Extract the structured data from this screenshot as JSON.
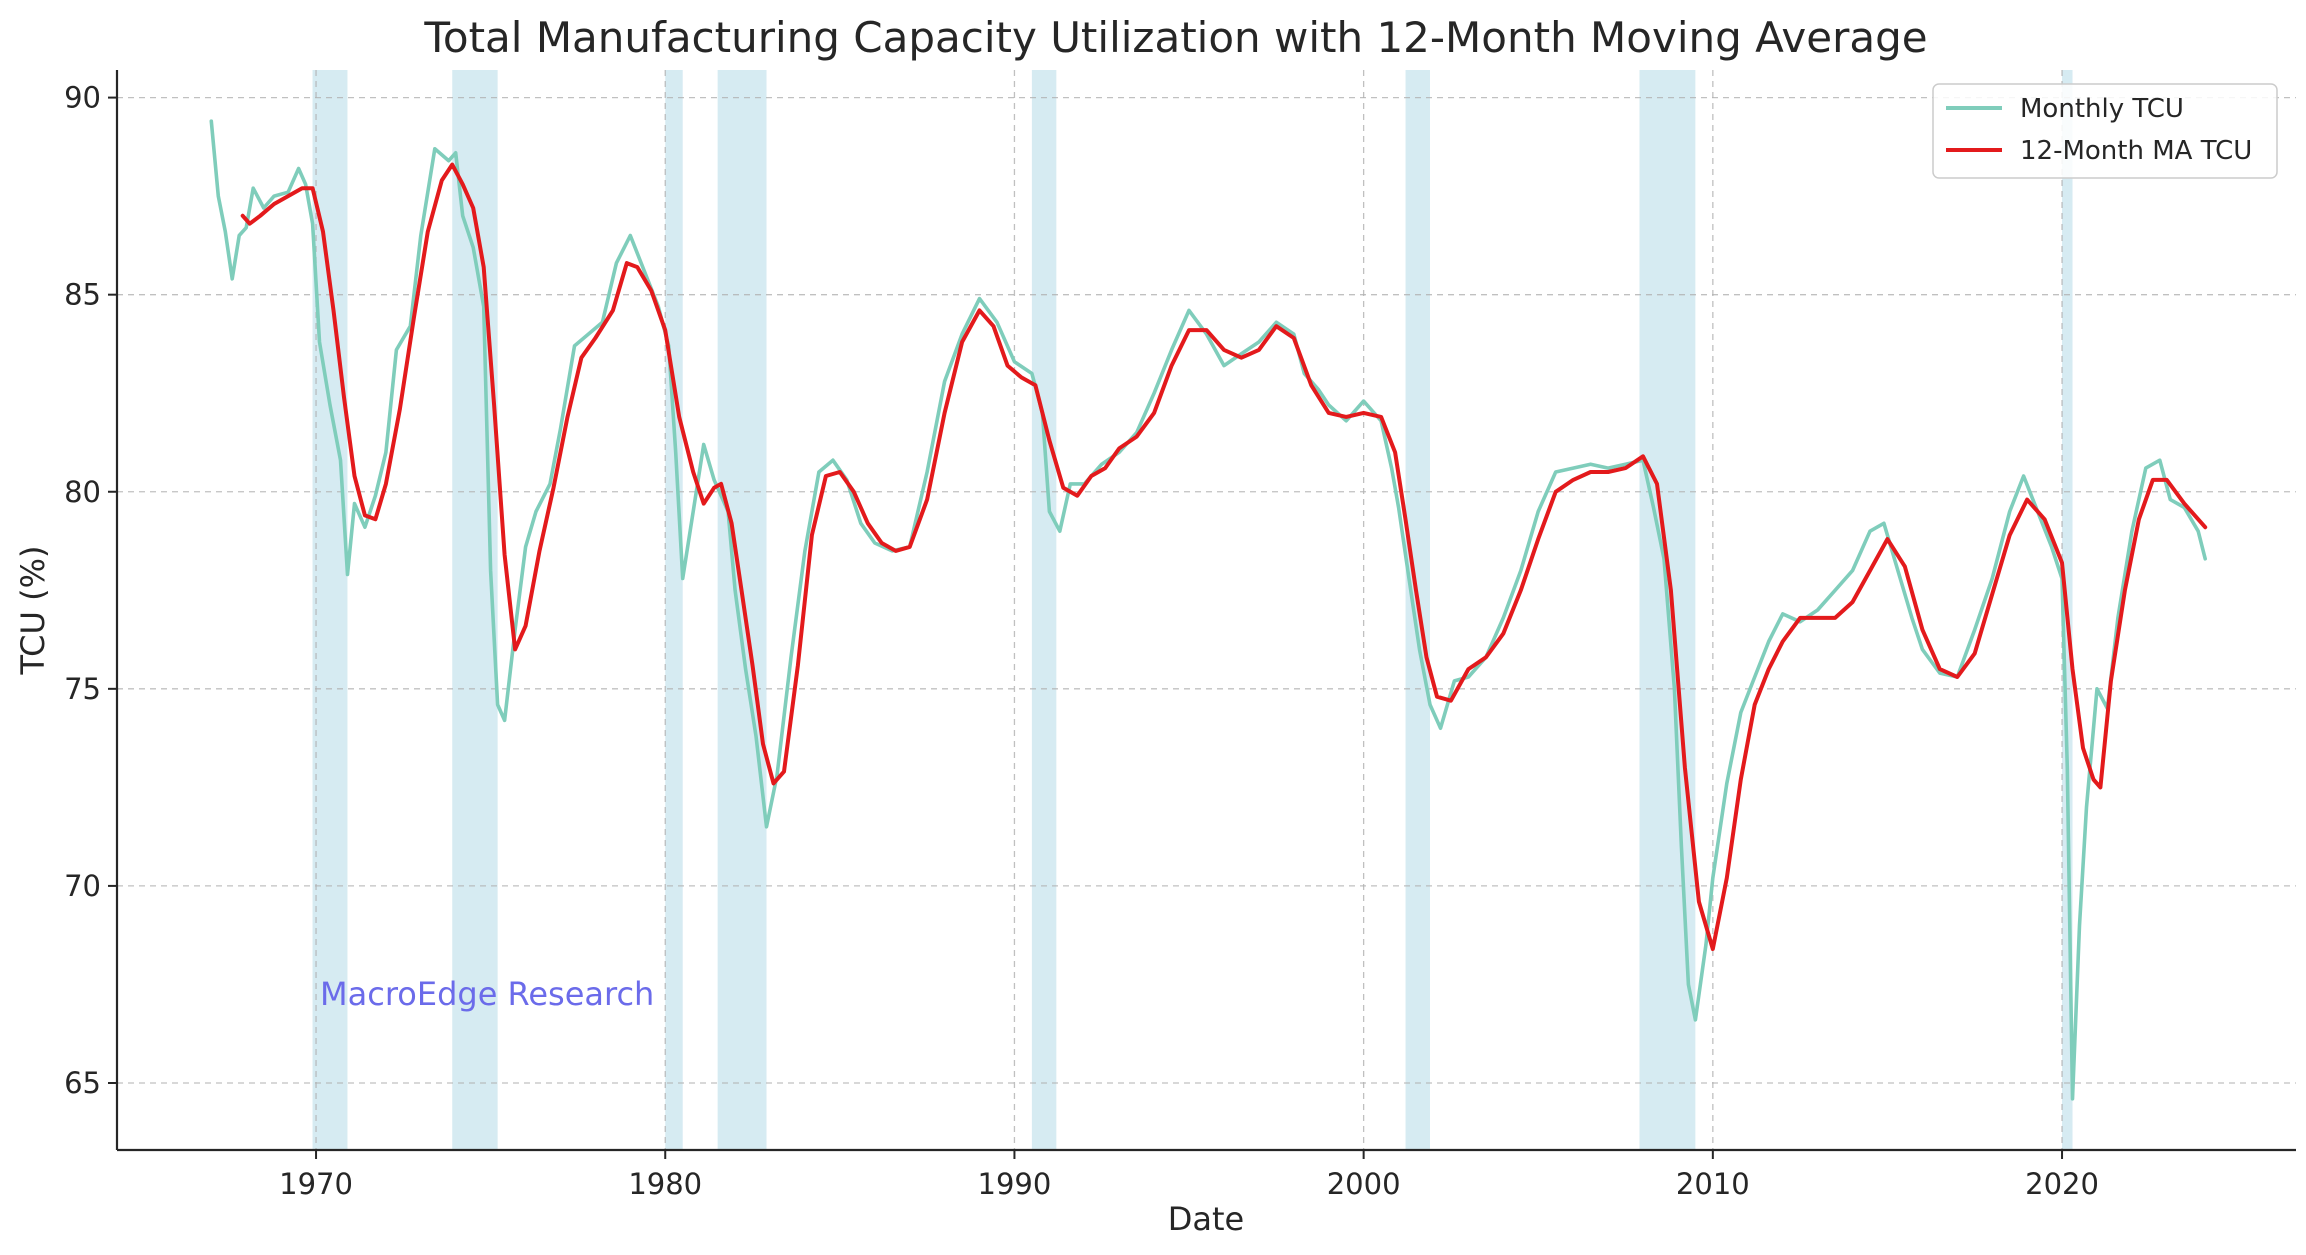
{
  "chart_data": {
    "type": "line",
    "title": "Total Manufacturing Capacity Utilization with 12-Month Moving Average",
    "xlabel": "Date",
    "ylabel": "TCU (%)",
    "xlim": [
      1964.3,
      2026.7
    ],
    "ylim": [
      63.3,
      90.7
    ],
    "xticks": [
      1970,
      1980,
      1990,
      2000,
      2010,
      2020
    ],
    "yticks": [
      65,
      70,
      75,
      80,
      85,
      90
    ],
    "grid": true,
    "legend_position": "top-right",
    "watermark": "MacroEdge Research",
    "recessions": [
      [
        1969.9,
        1970.9
      ],
      [
        1973.9,
        1975.2
      ],
      [
        1980.0,
        1980.5
      ],
      [
        1981.5,
        1982.9
      ],
      [
        1990.5,
        1991.2
      ],
      [
        2001.2,
        2001.9
      ],
      [
        2007.9,
        2009.5
      ],
      [
        2020.0,
        2020.3
      ]
    ],
    "series": [
      {
        "name": "Monthly TCU",
        "color": "#7fcdbb",
        "points": [
          [
            1967.0,
            89.4
          ],
          [
            1967.2,
            87.5
          ],
          [
            1967.4,
            86.6
          ],
          [
            1967.6,
            85.4
          ],
          [
            1967.8,
            86.5
          ],
          [
            1968.0,
            86.7
          ],
          [
            1968.2,
            87.7
          ],
          [
            1968.5,
            87.2
          ],
          [
            1968.8,
            87.5
          ],
          [
            1969.2,
            87.6
          ],
          [
            1969.5,
            88.2
          ],
          [
            1969.7,
            87.8
          ],
          [
            1969.9,
            86.8
          ],
          [
            1970.1,
            83.8
          ],
          [
            1970.4,
            82.2
          ],
          [
            1970.7,
            80.8
          ],
          [
            1970.9,
            77.9
          ],
          [
            1971.1,
            79.7
          ],
          [
            1971.4,
            79.1
          ],
          [
            1971.7,
            79.9
          ],
          [
            1972.0,
            81.0
          ],
          [
            1972.3,
            83.6
          ],
          [
            1972.7,
            84.2
          ],
          [
            1973.0,
            86.5
          ],
          [
            1973.4,
            88.7
          ],
          [
            1973.8,
            88.4
          ],
          [
            1974.0,
            88.6
          ],
          [
            1974.2,
            87.0
          ],
          [
            1974.5,
            86.2
          ],
          [
            1974.8,
            84.7
          ],
          [
            1975.0,
            78.0
          ],
          [
            1975.2,
            74.6
          ],
          [
            1975.4,
            74.2
          ],
          [
            1975.7,
            76.5
          ],
          [
            1976.0,
            78.6
          ],
          [
            1976.3,
            79.5
          ],
          [
            1976.7,
            80.2
          ],
          [
            1977.0,
            81.6
          ],
          [
            1977.4,
            83.7
          ],
          [
            1977.8,
            84.0
          ],
          [
            1978.2,
            84.3
          ],
          [
            1978.6,
            85.8
          ],
          [
            1979.0,
            86.5
          ],
          [
            1979.4,
            85.6
          ],
          [
            1979.8,
            84.7
          ],
          [
            1980.1,
            83.7
          ],
          [
            1980.3,
            81.0
          ],
          [
            1980.5,
            77.8
          ],
          [
            1980.8,
            79.5
          ],
          [
            1981.1,
            81.2
          ],
          [
            1981.4,
            80.3
          ],
          [
            1981.8,
            79.5
          ],
          [
            1982.0,
            77.5
          ],
          [
            1982.3,
            75.5
          ],
          [
            1982.6,
            73.8
          ],
          [
            1982.9,
            71.5
          ],
          [
            1983.2,
            72.8
          ],
          [
            1983.6,
            75.8
          ],
          [
            1984.0,
            78.5
          ],
          [
            1984.4,
            80.5
          ],
          [
            1984.8,
            80.8
          ],
          [
            1985.2,
            80.3
          ],
          [
            1985.6,
            79.2
          ],
          [
            1986.0,
            78.7
          ],
          [
            1986.5,
            78.5
          ],
          [
            1987.0,
            78.6
          ],
          [
            1987.5,
            80.5
          ],
          [
            1988.0,
            82.8
          ],
          [
            1988.5,
            84.0
          ],
          [
            1989.0,
            84.9
          ],
          [
            1989.5,
            84.3
          ],
          [
            1990.0,
            83.3
          ],
          [
            1990.5,
            83.0
          ],
          [
            1990.8,
            82.0
          ],
          [
            1991.0,
            79.5
          ],
          [
            1991.3,
            79.0
          ],
          [
            1991.6,
            80.2
          ],
          [
            1992.0,
            80.2
          ],
          [
            1992.5,
            80.7
          ],
          [
            1993.0,
            81.0
          ],
          [
            1993.5,
            81.5
          ],
          [
            1994.0,
            82.5
          ],
          [
            1994.5,
            83.6
          ],
          [
            1995.0,
            84.6
          ],
          [
            1995.5,
            84.0
          ],
          [
            1996.0,
            83.2
          ],
          [
            1996.5,
            83.5
          ],
          [
            1997.0,
            83.8
          ],
          [
            1997.5,
            84.3
          ],
          [
            1998.0,
            84.0
          ],
          [
            1998.3,
            83.0
          ],
          [
            1998.7,
            82.6
          ],
          [
            1999.0,
            82.2
          ],
          [
            1999.5,
            81.8
          ],
          [
            2000.0,
            82.3
          ],
          [
            2000.5,
            81.8
          ],
          [
            2000.8,
            80.6
          ],
          [
            2001.0,
            79.6
          ],
          [
            2001.3,
            77.8
          ],
          [
            2001.6,
            76.0
          ],
          [
            2001.9,
            74.6
          ],
          [
            2002.2,
            74.0
          ],
          [
            2002.6,
            75.2
          ],
          [
            2003.0,
            75.3
          ],
          [
            2003.5,
            75.8
          ],
          [
            2004.0,
            76.8
          ],
          [
            2004.5,
            78.0
          ],
          [
            2005.0,
            79.5
          ],
          [
            2005.5,
            80.5
          ],
          [
            2006.0,
            80.6
          ],
          [
            2006.5,
            80.7
          ],
          [
            2007.0,
            80.6
          ],
          [
            2007.5,
            80.7
          ],
          [
            2008.0,
            80.8
          ],
          [
            2008.3,
            79.6
          ],
          [
            2008.6,
            78.3
          ],
          [
            2008.9,
            75.0
          ],
          [
            2009.1,
            71.0
          ],
          [
            2009.3,
            67.5
          ],
          [
            2009.5,
            66.6
          ],
          [
            2009.8,
            68.5
          ],
          [
            2010.0,
            70.2
          ],
          [
            2010.4,
            72.6
          ],
          [
            2010.8,
            74.4
          ],
          [
            2011.2,
            75.3
          ],
          [
            2011.6,
            76.2
          ],
          [
            2012.0,
            76.9
          ],
          [
            2012.5,
            76.7
          ],
          [
            2013.0,
            77.0
          ],
          [
            2013.5,
            77.5
          ],
          [
            2014.0,
            78.0
          ],
          [
            2014.5,
            79.0
          ],
          [
            2014.9,
            79.2
          ],
          [
            2015.3,
            78.0
          ],
          [
            2015.7,
            76.8
          ],
          [
            2016.0,
            76.0
          ],
          [
            2016.5,
            75.4
          ],
          [
            2017.0,
            75.3
          ],
          [
            2017.5,
            76.5
          ],
          [
            2018.0,
            77.8
          ],
          [
            2018.5,
            79.5
          ],
          [
            2018.9,
            80.4
          ],
          [
            2019.3,
            79.5
          ],
          [
            2019.7,
            78.6
          ],
          [
            2020.0,
            77.8
          ],
          [
            2020.15,
            73.0
          ],
          [
            2020.3,
            64.6
          ],
          [
            2020.5,
            69.0
          ],
          [
            2020.7,
            72.0
          ],
          [
            2021.0,
            75.0
          ],
          [
            2021.3,
            74.5
          ],
          [
            2021.6,
            76.8
          ],
          [
            2022.0,
            79.0
          ],
          [
            2022.4,
            80.6
          ],
          [
            2022.8,
            80.8
          ],
          [
            2023.1,
            79.8
          ],
          [
            2023.5,
            79.6
          ],
          [
            2023.9,
            79.0
          ],
          [
            2024.1,
            78.3
          ]
        ]
      },
      {
        "name": "12-Month MA TCU",
        "color": "#e31a1c",
        "points": [
          [
            1967.9,
            87.0
          ],
          [
            1968.1,
            86.8
          ],
          [
            1968.4,
            87.0
          ],
          [
            1968.8,
            87.3
          ],
          [
            1969.2,
            87.5
          ],
          [
            1969.6,
            87.7
          ],
          [
            1969.9,
            87.7
          ],
          [
            1970.2,
            86.6
          ],
          [
            1970.5,
            84.6
          ],
          [
            1970.8,
            82.4
          ],
          [
            1971.1,
            80.4
          ],
          [
            1971.4,
            79.4
          ],
          [
            1971.7,
            79.3
          ],
          [
            1972.0,
            80.2
          ],
          [
            1972.4,
            82.1
          ],
          [
            1972.8,
            84.4
          ],
          [
            1973.2,
            86.6
          ],
          [
            1973.6,
            87.9
          ],
          [
            1973.9,
            88.3
          ],
          [
            1974.2,
            87.8
          ],
          [
            1974.5,
            87.2
          ],
          [
            1974.8,
            85.7
          ],
          [
            1975.1,
            82.2
          ],
          [
            1975.4,
            78.4
          ],
          [
            1975.7,
            76.0
          ],
          [
            1976.0,
            76.6
          ],
          [
            1976.4,
            78.5
          ],
          [
            1976.8,
            80.1
          ],
          [
            1977.2,
            81.9
          ],
          [
            1977.6,
            83.4
          ],
          [
            1978.0,
            83.9
          ],
          [
            1978.5,
            84.6
          ],
          [
            1978.9,
            85.8
          ],
          [
            1979.2,
            85.7
          ],
          [
            1979.6,
            85.1
          ],
          [
            1980.0,
            84.1
          ],
          [
            1980.4,
            81.9
          ],
          [
            1980.8,
            80.5
          ],
          [
            1981.1,
            79.7
          ],
          [
            1981.4,
            80.1
          ],
          [
            1981.6,
            80.2
          ],
          [
            1981.9,
            79.2
          ],
          [
            1982.2,
            77.4
          ],
          [
            1982.5,
            75.6
          ],
          [
            1982.8,
            73.6
          ],
          [
            1983.1,
            72.6
          ],
          [
            1983.4,
            72.9
          ],
          [
            1983.8,
            75.6
          ],
          [
            1984.2,
            78.9
          ],
          [
            1984.6,
            80.4
          ],
          [
            1985.0,
            80.5
          ],
          [
            1985.4,
            80.0
          ],
          [
            1985.8,
            79.2
          ],
          [
            1986.2,
            78.7
          ],
          [
            1986.6,
            78.5
          ],
          [
            1987.0,
            78.6
          ],
          [
            1987.5,
            79.8
          ],
          [
            1988.0,
            82.0
          ],
          [
            1988.5,
            83.8
          ],
          [
            1989.0,
            84.6
          ],
          [
            1989.4,
            84.2
          ],
          [
            1989.8,
            83.2
          ],
          [
            1990.2,
            82.9
          ],
          [
            1990.6,
            82.7
          ],
          [
            1991.0,
            81.3
          ],
          [
            1991.4,
            80.1
          ],
          [
            1991.8,
            79.9
          ],
          [
            1992.2,
            80.4
          ],
          [
            1992.6,
            80.6
          ],
          [
            1993.0,
            81.1
          ],
          [
            1993.5,
            81.4
          ],
          [
            1994.0,
            82.0
          ],
          [
            1994.5,
            83.2
          ],
          [
            1995.0,
            84.1
          ],
          [
            1995.5,
            84.1
          ],
          [
            1996.0,
            83.6
          ],
          [
            1996.5,
            83.4
          ],
          [
            1997.0,
            83.6
          ],
          [
            1997.5,
            84.2
          ],
          [
            1998.0,
            83.9
          ],
          [
            1998.5,
            82.7
          ],
          [
            1999.0,
            82.0
          ],
          [
            1999.5,
            81.9
          ],
          [
            2000.0,
            82.0
          ],
          [
            2000.5,
            81.9
          ],
          [
            2000.9,
            81.0
          ],
          [
            2001.2,
            79.3
          ],
          [
            2001.5,
            77.5
          ],
          [
            2001.8,
            75.8
          ],
          [
            2002.1,
            74.8
          ],
          [
            2002.5,
            74.7
          ],
          [
            2003.0,
            75.5
          ],
          [
            2003.5,
            75.8
          ],
          [
            2004.0,
            76.4
          ],
          [
            2004.5,
            77.5
          ],
          [
            2005.0,
            78.8
          ],
          [
            2005.5,
            80.0
          ],
          [
            2006.0,
            80.3
          ],
          [
            2006.5,
            80.5
          ],
          [
            2007.0,
            80.5
          ],
          [
            2007.5,
            80.6
          ],
          [
            2008.0,
            80.9
          ],
          [
            2008.4,
            80.2
          ],
          [
            2008.8,
            77.5
          ],
          [
            2009.2,
            73.0
          ],
          [
            2009.6,
            69.6
          ],
          [
            2010.0,
            68.4
          ],
          [
            2010.4,
            70.2
          ],
          [
            2010.8,
            72.7
          ],
          [
            2011.2,
            74.6
          ],
          [
            2011.6,
            75.5
          ],
          [
            2012.0,
            76.2
          ],
          [
            2012.5,
            76.8
          ],
          [
            2013.0,
            76.8
          ],
          [
            2013.5,
            76.8
          ],
          [
            2014.0,
            77.2
          ],
          [
            2014.5,
            78.0
          ],
          [
            2015.0,
            78.8
          ],
          [
            2015.5,
            78.1
          ],
          [
            2016.0,
            76.5
          ],
          [
            2016.5,
            75.5
          ],
          [
            2017.0,
            75.3
          ],
          [
            2017.5,
            75.9
          ],
          [
            2018.0,
            77.4
          ],
          [
            2018.5,
            78.9
          ],
          [
            2019.0,
            79.8
          ],
          [
            2019.5,
            79.3
          ],
          [
            2020.0,
            78.2
          ],
          [
            2020.3,
            75.5
          ],
          [
            2020.6,
            73.5
          ],
          [
            2020.9,
            72.7
          ],
          [
            2021.1,
            72.5
          ],
          [
            2021.4,
            75.2
          ],
          [
            2021.8,
            77.5
          ],
          [
            2022.2,
            79.3
          ],
          [
            2022.6,
            80.3
          ],
          [
            2023.0,
            80.3
          ],
          [
            2023.5,
            79.7
          ],
          [
            2024.1,
            79.1
          ]
        ]
      }
    ]
  }
}
